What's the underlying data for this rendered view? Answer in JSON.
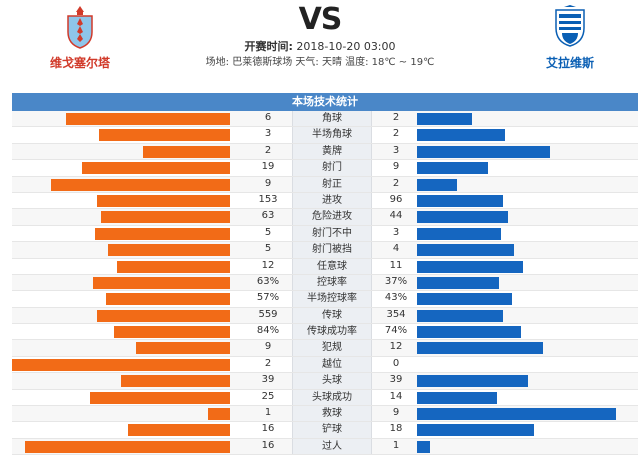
{
  "header": {
    "vs_text": "VS",
    "home_team": "维戈塞尔塔",
    "away_team": "艾拉维斯",
    "time_label": "开赛时间:",
    "time_value": "2018-10-20 03:00",
    "info": "场地: 巴莱德斯球场 天气: 天晴 温度: 18℃ ~ 19℃"
  },
  "table": {
    "title": "本场技术统计"
  },
  "colors": {
    "home_bar": "#f26b17",
    "away_bar": "#1566c0",
    "title_bg": "#4a87c8"
  },
  "stats": [
    {
      "label": "角球",
      "home": "6",
      "away": "2",
      "home_ratio": 0.75,
      "away_ratio": 0.25
    },
    {
      "label": "半场角球",
      "home": "3",
      "away": "2",
      "home_ratio": 0.6,
      "away_ratio": 0.4
    },
    {
      "label": "黄牌",
      "home": "2",
      "away": "3",
      "home_ratio": 0.4,
      "away_ratio": 0.6
    },
    {
      "label": "射门",
      "home": "19",
      "away": "9",
      "home_ratio": 0.68,
      "away_ratio": 0.32
    },
    {
      "label": "射正",
      "home": "9",
      "away": "2",
      "home_ratio": 0.82,
      "away_ratio": 0.18
    },
    {
      "label": "进攻",
      "home": "153",
      "away": "96",
      "home_ratio": 0.61,
      "away_ratio": 0.39
    },
    {
      "label": "危险进攻",
      "home": "63",
      "away": "44",
      "home_ratio": 0.59,
      "away_ratio": 0.41
    },
    {
      "label": "射门不中",
      "home": "5",
      "away": "3",
      "home_ratio": 0.62,
      "away_ratio": 0.38
    },
    {
      "label": "射门被挡",
      "home": "5",
      "away": "4",
      "home_ratio": 0.56,
      "away_ratio": 0.44
    },
    {
      "label": "任意球",
      "home": "12",
      "away": "11",
      "home_ratio": 0.52,
      "away_ratio": 0.48
    },
    {
      "label": "控球率",
      "home": "63%",
      "away": "37%",
      "home_ratio": 0.63,
      "away_ratio": 0.37
    },
    {
      "label": "半场控球率",
      "home": "57%",
      "away": "43%",
      "home_ratio": 0.57,
      "away_ratio": 0.43
    },
    {
      "label": "传球",
      "home": "559",
      "away": "354",
      "home_ratio": 0.61,
      "away_ratio": 0.39
    },
    {
      "label": "传球成功率",
      "home": "84%",
      "away": "74%",
      "home_ratio": 0.53,
      "away_ratio": 0.47
    },
    {
      "label": "犯规",
      "home": "9",
      "away": "12",
      "home_ratio": 0.43,
      "away_ratio": 0.57
    },
    {
      "label": "越位",
      "home": "2",
      "away": "0",
      "home_ratio": 1.0,
      "away_ratio": 0.0
    },
    {
      "label": "头球",
      "home": "39",
      "away": "39",
      "home_ratio": 0.5,
      "away_ratio": 0.5
    },
    {
      "label": "头球成功",
      "home": "25",
      "away": "14",
      "home_ratio": 0.64,
      "away_ratio": 0.36
    },
    {
      "label": "救球",
      "home": "1",
      "away": "9",
      "home_ratio": 0.1,
      "away_ratio": 0.9
    },
    {
      "label": "铲球",
      "home": "16",
      "away": "18",
      "home_ratio": 0.47,
      "away_ratio": 0.53
    },
    {
      "label": "过人",
      "home": "16",
      "away": "1",
      "home_ratio": 0.94,
      "away_ratio": 0.06
    }
  ]
}
